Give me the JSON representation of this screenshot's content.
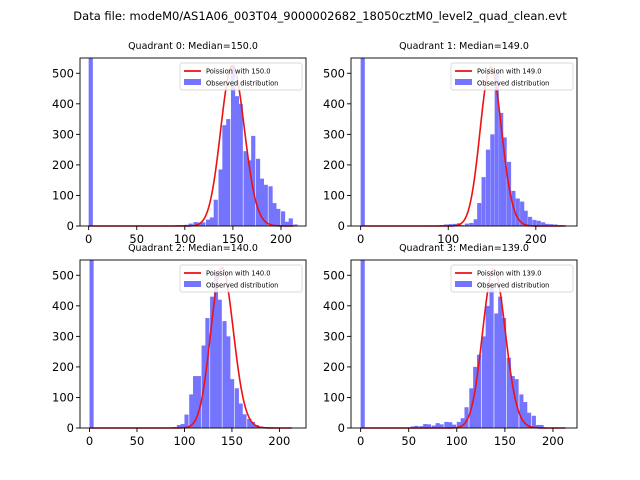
{
  "suptitle": "Data file: modeM0/AS1A06_003T04_9000002682_18050cztM0_level2_quad_clean.evt",
  "colors": {
    "bar": "#7474ff",
    "line": "#ee1111",
    "axis": "#000000",
    "background": "#ffffff"
  },
  "chart_data": [
    {
      "type": "bar",
      "title": "Quadrant 0: Median=150.0",
      "legend": [
        "Poission with 150.0",
        "Observed distribution"
      ],
      "legend_loc": "upper right",
      "xlim": [
        -9,
        226
      ],
      "ylim": [
        0,
        550
      ],
      "xticks": [
        0,
        50,
        100,
        150,
        200
      ],
      "yticks": [
        0,
        100,
        200,
        300,
        400,
        500
      ],
      "bin_width": 4.33,
      "bins": [
        [
          0,
          550
        ],
        [
          74,
          1
        ],
        [
          78,
          2
        ],
        [
          83,
          1
        ],
        [
          87,
          2
        ],
        [
          91,
          3
        ],
        [
          96,
          3
        ],
        [
          100,
          4
        ],
        [
          104,
          8
        ],
        [
          109,
          13
        ],
        [
          113,
          11
        ],
        [
          117,
          12
        ],
        [
          122,
          21
        ],
        [
          126,
          28
        ],
        [
          130,
          86
        ],
        [
          135,
          185
        ],
        [
          139,
          330
        ],
        [
          143,
          350
        ],
        [
          148,
          525
        ],
        [
          152,
          425
        ],
        [
          156,
          400
        ],
        [
          161,
          245
        ],
        [
          165,
          215
        ],
        [
          169,
          295
        ],
        [
          174,
          220
        ],
        [
          178,
          155
        ],
        [
          182,
          135
        ],
        [
          187,
          130
        ],
        [
          191,
          75
        ],
        [
          195,
          56
        ],
        [
          200,
          48
        ],
        [
          204,
          14
        ],
        [
          208,
          25
        ],
        [
          213,
          5
        ]
      ],
      "poisson": {
        "mean": 150.0,
        "x_range": [
          0,
          213
        ],
        "peak": 525
      }
    },
    {
      "type": "bar",
      "title": "Quadrant 1: Median=149.0",
      "legend": [
        "Poission with 149.0",
        "Observed distribution"
      ],
      "legend_loc": "upper right",
      "xlim": [
        -11,
        247
      ],
      "ylim": [
        0,
        550
      ],
      "xticks": [
        0,
        100,
        200
      ],
      "yticks": [
        0,
        100,
        200,
        300,
        400,
        500
      ],
      "bin_width": 4.77,
      "bins": [
        [
          0,
          550
        ],
        [
          71,
          1
        ],
        [
          76,
          2
        ],
        [
          81,
          1
        ],
        [
          86,
          2
        ],
        [
          90,
          3
        ],
        [
          95,
          5
        ],
        [
          100,
          6
        ],
        [
          105,
          7
        ],
        [
          110,
          9
        ],
        [
          114,
          3
        ],
        [
          119,
          8
        ],
        [
          124,
          10
        ],
        [
          129,
          22
        ],
        [
          133,
          75
        ],
        [
          138,
          160
        ],
        [
          143,
          250
        ],
        [
          148,
          300
        ],
        [
          153,
          500
        ],
        [
          158,
          370
        ],
        [
          162,
          290
        ],
        [
          167,
          210
        ],
        [
          172,
          115
        ],
        [
          177,
          90
        ],
        [
          182,
          80
        ],
        [
          186,
          50
        ],
        [
          191,
          30
        ],
        [
          196,
          20
        ],
        [
          201,
          17
        ],
        [
          206,
          12
        ],
        [
          210,
          7
        ],
        [
          215,
          6
        ],
        [
          220,
          5
        ],
        [
          225,
          3
        ],
        [
          230,
          2
        ]
      ],
      "poisson": {
        "mean": 149.0,
        "x_range": [
          0,
          234
        ],
        "peak": 520
      }
    },
    {
      "type": "bar",
      "title": "Quadrant 2: Median=140.0",
      "legend": [
        "Poission with 140.0",
        "Observed distribution"
      ],
      "legend_loc": "upper right",
      "xlim": [
        -10,
        228
      ],
      "ylim": [
        0,
        550
      ],
      "xticks": [
        0,
        50,
        100,
        150,
        200
      ],
      "yticks": [
        0,
        100,
        200,
        300,
        400,
        500
      ],
      "bin_width": 4.36,
      "bins": [
        [
          0,
          550
        ],
        [
          74,
          1
        ],
        [
          79,
          1
        ],
        [
          83,
          2
        ],
        [
          87,
          3
        ],
        [
          92,
          10
        ],
        [
          96,
          13
        ],
        [
          100,
          44
        ],
        [
          105,
          110
        ],
        [
          109,
          170
        ],
        [
          113,
          170
        ],
        [
          118,
          270
        ],
        [
          122,
          360
        ],
        [
          127,
          430
        ],
        [
          131,
          510
        ],
        [
          135,
          420
        ],
        [
          140,
          350
        ],
        [
          144,
          300
        ],
        [
          148,
          160
        ],
        [
          153,
          130
        ],
        [
          157,
          80
        ],
        [
          161,
          45
        ],
        [
          166,
          30
        ],
        [
          170,
          20
        ],
        [
          174,
          10
        ],
        [
          179,
          5
        ],
        [
          183,
          3
        ],
        [
          187,
          2
        ],
        [
          192,
          2
        ],
        [
          196,
          2
        ],
        [
          200,
          1
        ],
        [
          205,
          1
        ],
        [
          209,
          1
        ]
      ],
      "poisson": {
        "mean": 140.0,
        "x_range": [
          0,
          213
        ],
        "peak": 525
      }
    },
    {
      "type": "bar",
      "title": "Quadrant 3: Median=139.0",
      "legend": [
        "Poission with 139.0",
        "Observed distribution"
      ],
      "legend_loc": "upper right",
      "xlim": [
        -10,
        225
      ],
      "ylim": [
        0,
        550
      ],
      "xticks": [
        0,
        50,
        100,
        150,
        200
      ],
      "yticks": [
        0,
        100,
        200,
        300,
        400,
        500
      ],
      "bin_width": 4.3,
      "bins": [
        [
          0,
          550
        ],
        [
          52,
          5
        ],
        [
          56,
          7
        ],
        [
          61,
          6
        ],
        [
          65,
          13
        ],
        [
          69,
          12
        ],
        [
          74,
          8
        ],
        [
          78,
          16
        ],
        [
          82,
          12
        ],
        [
          87,
          20
        ],
        [
          91,
          19
        ],
        [
          95,
          11
        ],
        [
          100,
          20
        ],
        [
          104,
          32
        ],
        [
          108,
          68
        ],
        [
          113,
          130
        ],
        [
          117,
          200
        ],
        [
          121,
          240
        ],
        [
          126,
          300
        ],
        [
          130,
          400
        ],
        [
          134,
          470
        ],
        [
          139,
          375
        ],
        [
          143,
          430
        ],
        [
          147,
          360
        ],
        [
          152,
          230
        ],
        [
          156,
          170
        ],
        [
          160,
          160
        ],
        [
          165,
          110
        ],
        [
          169,
          85
        ],
        [
          173,
          50
        ],
        [
          178,
          40
        ],
        [
          182,
          10
        ],
        [
          186,
          10
        ]
      ],
      "poisson": {
        "mean": 139.0,
        "x_range": [
          0,
          213
        ],
        "peak": 520
      }
    }
  ]
}
